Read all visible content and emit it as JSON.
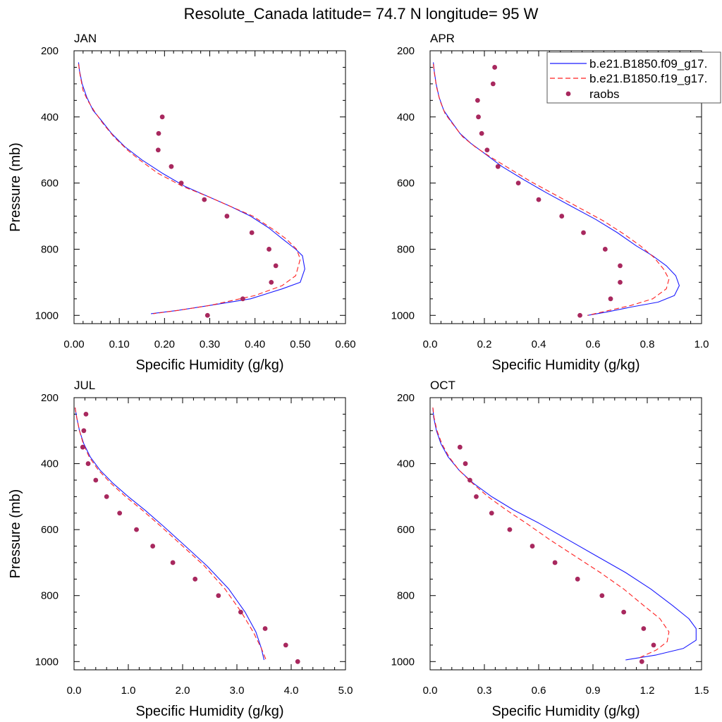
{
  "figure_title": "Resolute_Canada  latitude= 74.7 N longitude= 95 W",
  "colors": {
    "model1": "#1a1aff",
    "model2": "#ff2020",
    "raobs": "#a8285e"
  },
  "legend": {
    "entries": [
      "b.e21.B1850.f09_g17.",
      "b.e21.B1850.f19_g17.",
      "raobs"
    ],
    "placement": "top-right of APR panel"
  },
  "chart_data": [
    {
      "type": "line",
      "title": "JAN",
      "xlabel": "Specific Humidity (g/kg)",
      "ylabel": "Pressure (mb)",
      "xlim": [
        0,
        0.6
      ],
      "ylim": [
        200,
        1025
      ],
      "y_reversed": true,
      "xticks": [
        0,
        0.1,
        0.2,
        0.3,
        0.4,
        0.5,
        0.6
      ],
      "xticklabels": [
        "0.00",
        "0.10",
        "0.20",
        "0.30",
        "0.40",
        "0.50",
        "0.60"
      ],
      "yticks": [
        200,
        400,
        600,
        800,
        1000
      ],
      "yticklabels": [
        "200",
        "400",
        "600",
        "800",
        "1000"
      ],
      "series": [
        {
          "name": "b.e21.B1850.f09_g17.",
          "style": "solid",
          "x": [
            0.01,
            0.012,
            0.018,
            0.028,
            0.042,
            0.06,
            0.083,
            0.112,
            0.15,
            0.195,
            0.245,
            0.295,
            0.345,
            0.39,
            0.43,
            0.462,
            0.49,
            0.505,
            0.51,
            0.5,
            0.46,
            0.39,
            0.3,
            0.23,
            0.17
          ],
          "y": [
            235,
            260,
            300,
            340,
            380,
            410,
            450,
            490,
            530,
            570,
            610,
            640,
            670,
            700,
            735,
            770,
            800,
            820,
            860,
            900,
            920,
            950,
            970,
            985,
            995
          ]
        },
        {
          "name": "b.e21.B1850.f19_g17.",
          "style": "dashed",
          "x": [
            0.01,
            0.013,
            0.02,
            0.03,
            0.046,
            0.064,
            0.088,
            0.118,
            0.145,
            0.185,
            0.24,
            0.295,
            0.345,
            0.395,
            0.44,
            0.47,
            0.492,
            0.5,
            0.49,
            0.46,
            0.4,
            0.3,
            0.23,
            0.175
          ],
          "y": [
            240,
            270,
            320,
            350,
            385,
            420,
            460,
            500,
            530,
            570,
            610,
            640,
            670,
            700,
            740,
            770,
            800,
            830,
            880,
            910,
            940,
            970,
            985,
            995
          ]
        },
        {
          "name": "raobs",
          "style": "markers",
          "x": [
            0.195,
            0.187,
            0.186,
            0.215,
            0.237,
            0.288,
            0.338,
            0.393,
            0.431,
            0.446,
            0.436,
            0.373,
            0.295
          ],
          "y": [
            400,
            450,
            500,
            550,
            600,
            650,
            700,
            750,
            800,
            850,
            900,
            950,
            1000
          ]
        }
      ]
    },
    {
      "type": "line",
      "title": "APR",
      "xlabel": "Specific Humidity (g/kg)",
      "ylabel": "",
      "xlim": [
        0,
        1.0
      ],
      "ylim": [
        200,
        1025
      ],
      "y_reversed": true,
      "xticks": [
        0,
        0.2,
        0.4,
        0.6,
        0.8,
        1.0
      ],
      "xticklabels": [
        "0.0",
        "0.2",
        "0.4",
        "0.6",
        "0.8",
        "1.0"
      ],
      "yticks": [
        200,
        400,
        600,
        800,
        1000
      ],
      "yticklabels": [
        "200",
        "400",
        "600",
        "800",
        "1000"
      ],
      "series": [
        {
          "name": "b.e21.B1850.f09_g17.",
          "style": "solid",
          "x": [
            0.012,
            0.015,
            0.022,
            0.033,
            0.05,
            0.075,
            0.11,
            0.15,
            0.2,
            0.265,
            0.345,
            0.43,
            0.52,
            0.61,
            0.69,
            0.76,
            0.82,
            0.87,
            0.905,
            0.918,
            0.9,
            0.84,
            0.74,
            0.65,
            0.58
          ],
          "y": [
            235,
            260,
            300,
            340,
            380,
            410,
            450,
            480,
            510,
            550,
            590,
            630,
            670,
            710,
            750,
            790,
            820,
            850,
            880,
            910,
            940,
            960,
            975,
            990,
            1000
          ]
        },
        {
          "name": "b.e21.B1850.f19_g17.",
          "style": "dashed",
          "x": [
            0.012,
            0.016,
            0.024,
            0.036,
            0.055,
            0.082,
            0.12,
            0.165,
            0.22,
            0.29,
            0.37,
            0.46,
            0.55,
            0.64,
            0.715,
            0.775,
            0.825,
            0.86,
            0.88,
            0.87,
            0.82,
            0.74,
            0.66,
            0.58
          ],
          "y": [
            240,
            270,
            310,
            350,
            390,
            420,
            460,
            490,
            520,
            555,
            595,
            635,
            675,
            715,
            755,
            790,
            825,
            860,
            890,
            920,
            950,
            970,
            985,
            1000
          ]
        },
        {
          "name": "raobs",
          "style": "markers",
          "x": [
            0.238,
            0.232,
            0.175,
            0.178,
            0.19,
            0.21,
            0.25,
            0.325,
            0.4,
            0.485,
            0.565,
            0.645,
            0.7,
            0.7,
            0.665,
            0.552
          ],
          "y": [
            250,
            300,
            350,
            400,
            450,
            500,
            550,
            600,
            650,
            700,
            750,
            800,
            850,
            900,
            950,
            1000
          ]
        }
      ]
    },
    {
      "type": "line",
      "title": "JUL",
      "xlabel": "Specific Humidity (g/kg)",
      "ylabel": "Pressure (mb)",
      "xlim": [
        0,
        5.0
      ],
      "ylim": [
        200,
        1025
      ],
      "y_reversed": true,
      "xticks": [
        0,
        1,
        2,
        3,
        4,
        5
      ],
      "xticklabels": [
        "0.0",
        "1.0",
        "2.0",
        "3.0",
        "4.0",
        "5.0"
      ],
      "yticks": [
        200,
        400,
        600,
        800,
        1000
      ],
      "yticklabels": [
        "200",
        "400",
        "600",
        "800",
        "1000"
      ],
      "series": [
        {
          "name": "b.e21.B1850.f09_g17.",
          "style": "solid",
          "x": [
            0.02,
            0.05,
            0.1,
            0.18,
            0.3,
            0.48,
            0.72,
            1.0,
            1.3,
            1.65,
            2.05,
            2.45,
            2.85,
            3.15,
            3.35,
            3.45,
            3.5
          ],
          "y": [
            230,
            260,
            300,
            340,
            380,
            420,
            460,
            500,
            540,
            590,
            650,
            710,
            780,
            850,
            910,
            960,
            995
          ]
        },
        {
          "name": "b.e21.B1850.f19_g17.",
          "style": "dashed",
          "x": [
            0.02,
            0.05,
            0.1,
            0.17,
            0.28,
            0.45,
            0.68,
            0.95,
            1.25,
            1.6,
            2.0,
            2.4,
            2.78,
            3.08,
            3.3,
            3.45,
            3.55
          ],
          "y": [
            230,
            260,
            300,
            340,
            380,
            420,
            460,
            500,
            540,
            590,
            650,
            710,
            780,
            850,
            910,
            960,
            1000
          ]
        },
        {
          "name": "raobs",
          "style": "markers",
          "x": [
            0.22,
            0.18,
            0.16,
            0.26,
            0.4,
            0.6,
            0.84,
            1.15,
            1.45,
            1.82,
            2.23,
            2.66,
            3.07,
            3.52,
            3.9,
            4.12
          ],
          "y": [
            250,
            300,
            350,
            400,
            450,
            500,
            550,
            600,
            650,
            700,
            750,
            800,
            850,
            900,
            950,
            1000
          ]
        }
      ]
    },
    {
      "type": "line",
      "title": "OCT",
      "xlabel": "Specific Humidity (g/kg)",
      "ylabel": "",
      "xlim": [
        0,
        1.5
      ],
      "ylim": [
        200,
        1025
      ],
      "y_reversed": true,
      "xticks": [
        0,
        0.3,
        0.6,
        0.9,
        1.2,
        1.5
      ],
      "xticklabels": [
        "0.0",
        "0.3",
        "0.6",
        "0.9",
        "1.2",
        "1.5"
      ],
      "yticks": [
        200,
        400,
        600,
        800,
        1000
      ],
      "yticklabels": [
        "200",
        "400",
        "600",
        "800",
        "1000"
      ],
      "series": [
        {
          "name": "b.e21.B1850.f09_g17.",
          "style": "solid",
          "x": [
            0.015,
            0.02,
            0.035,
            0.06,
            0.1,
            0.16,
            0.24,
            0.34,
            0.46,
            0.6,
            0.76,
            0.92,
            1.08,
            1.22,
            1.34,
            1.43,
            1.47,
            1.47,
            1.4,
            1.25,
            1.08
          ],
          "y": [
            230,
            260,
            300,
            340,
            380,
            420,
            460,
            500,
            540,
            580,
            630,
            680,
            730,
            780,
            830,
            870,
            900,
            935,
            960,
            980,
            995
          ]
        },
        {
          "name": "b.e21.B1850.f19_g17.",
          "style": "dashed",
          "x": [
            0.015,
            0.022,
            0.038,
            0.065,
            0.105,
            0.16,
            0.235,
            0.32,
            0.42,
            0.53,
            0.66,
            0.8,
            0.94,
            1.07,
            1.18,
            1.27,
            1.32,
            1.31,
            1.25,
            1.15
          ],
          "y": [
            230,
            260,
            300,
            340,
            380,
            420,
            460,
            500,
            540,
            580,
            630,
            680,
            730,
            780,
            830,
            870,
            910,
            940,
            965,
            990
          ]
        },
        {
          "name": "raobs",
          "style": "markers",
          "x": [
            0.165,
            0.195,
            0.22,
            0.255,
            0.34,
            0.44,
            0.565,
            0.69,
            0.815,
            0.95,
            1.07,
            1.18,
            1.235,
            1.17
          ],
          "y": [
            350,
            400,
            450,
            500,
            550,
            600,
            650,
            700,
            750,
            800,
            850,
            900,
            950,
            1000
          ]
        }
      ]
    }
  ]
}
